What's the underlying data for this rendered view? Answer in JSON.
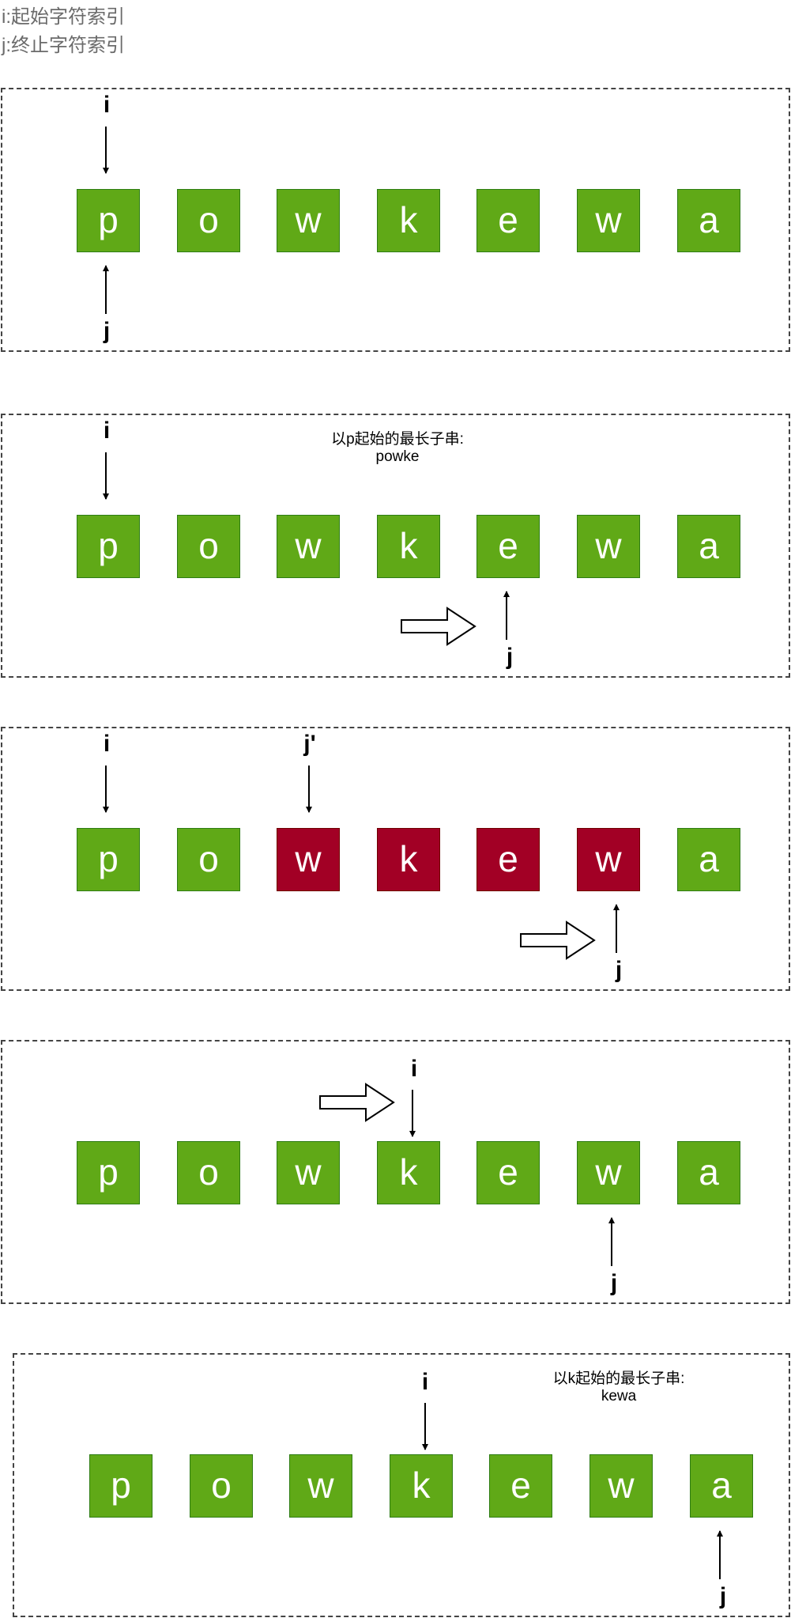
{
  "legend": {
    "i": "i:起始字符索引",
    "j": "j:终止字符索引"
  },
  "letters": [
    "p",
    "o",
    "w",
    "k",
    "e",
    "w",
    "a"
  ],
  "labels": {
    "i": "i",
    "j": "j",
    "j_prime": "j'"
  },
  "panels": [
    {
      "red": []
    },
    {
      "red": [],
      "note_title": "以p起始的最长子串:",
      "note_value": "powke"
    },
    {
      "red": [
        2,
        3,
        4,
        5
      ]
    },
    {
      "red": []
    },
    {
      "red": [],
      "note_title": "以k起始的最长子串:",
      "note_value": "kewa"
    }
  ],
  "colors": {
    "green": "#60a917",
    "red": "#a20025"
  }
}
